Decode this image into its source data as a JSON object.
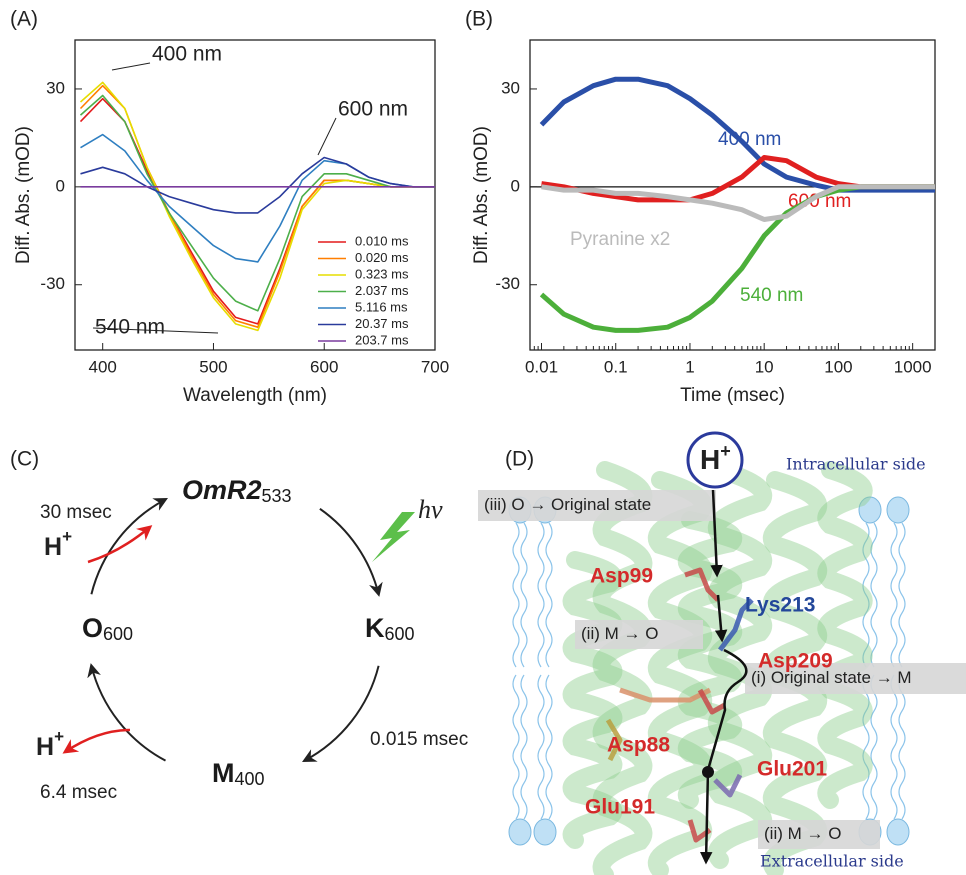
{
  "chart_data": [
    {
      "type": "line",
      "panel": "(A)",
      "x_label": "Wavelength (nm)",
      "y_label": "Diff. Abs. (mOD)",
      "x": [
        380,
        400,
        420,
        440,
        460,
        480,
        500,
        520,
        540,
        560,
        580,
        600,
        620,
        640,
        660,
        680,
        700
      ],
      "xlim": [
        375,
        700
      ],
      "xticks": [
        400,
        500,
        600,
        700
      ],
      "ylim": [
        -50,
        45
      ],
      "yticks": [
        -30,
        0,
        30
      ],
      "legend": "lower right",
      "annotations": [
        "400 nm",
        "600 nm",
        "540 nm"
      ],
      "series": [
        {
          "name": "0.010 ms",
          "color": "#e41a1c",
          "values": [
            20,
            27,
            20,
            5,
            -8,
            -20,
            -32,
            -40,
            -42,
            -25,
            -6,
            2,
            2,
            1,
            0,
            0,
            0
          ]
        },
        {
          "name": "0.020 ms",
          "color": "#ff7f00",
          "values": [
            24,
            31,
            24,
            6,
            -8,
            -21,
            -33,
            -41,
            -43,
            -26,
            -6,
            2,
            2,
            1,
            0,
            0,
            0
          ]
        },
        {
          "name": "0.323 ms",
          "color": "#e6dd00",
          "values": [
            26,
            32,
            24,
            6,
            -9,
            -22,
            -34,
            -42,
            -44,
            -28,
            -7,
            1,
            2,
            1,
            0,
            0,
            0
          ]
        },
        {
          "name": "2.037 ms",
          "color": "#4daf4a",
          "values": [
            22,
            28,
            20,
            4,
            -8,
            -18,
            -28,
            -35,
            -38,
            -22,
            -3,
            4,
            4,
            2,
            0,
            0,
            0
          ]
        },
        {
          "name": "5.116 ms",
          "color": "#2f7fc1",
          "values": [
            12,
            16,
            11,
            2,
            -6,
            -12,
            -18,
            -22,
            -23,
            -12,
            2,
            8,
            7,
            3,
            1,
            0,
            0
          ]
        },
        {
          "name": "20.37 ms",
          "color": "#2a3b9c",
          "values": [
            4,
            6,
            4,
            0,
            -3,
            -5,
            -7,
            -8,
            -8,
            -3,
            4,
            9,
            7,
            3,
            1,
            0,
            0
          ]
        },
        {
          "name": "203.7 ms",
          "color": "#7a3c9e",
          "values": [
            0,
            0,
            0,
            0,
            0,
            0,
            0,
            0,
            0,
            0,
            0,
            0,
            0,
            0,
            0,
            0,
            0
          ]
        }
      ]
    },
    {
      "type": "line",
      "panel": "(B)",
      "x_label": "Time (msec)",
      "y_label": "Diff. Abs. (mOD)",
      "log_x": true,
      "x": [
        0.01,
        0.02,
        0.05,
        0.1,
        0.2,
        0.5,
        1,
        2,
        5,
        10,
        20,
        50,
        100,
        200,
        500,
        1000,
        2000
      ],
      "xlim": [
        0.007,
        2000
      ],
      "xticks": [
        0.01,
        0.1,
        1,
        10,
        100,
        1000
      ],
      "ylim": [
        -50,
        45
      ],
      "yticks": [
        -30,
        0,
        30
      ],
      "series": [
        {
          "name": "400 nm",
          "color": "#2a4fa8",
          "values": [
            19,
            26,
            31,
            33,
            33,
            31,
            27,
            22,
            14,
            7,
            3,
            0.5,
            -1,
            -1,
            -1,
            -1,
            -1
          ]
        },
        {
          "name": "600 nm",
          "color": "#e02020",
          "values": [
            1,
            0,
            -2,
            -3,
            -4,
            -4,
            -4,
            -2,
            3,
            9,
            8,
            3,
            1,
            0,
            0,
            0,
            0
          ]
        },
        {
          "name": "540 nm",
          "color": "#4caf3a",
          "values": [
            -33,
            -39,
            -43,
            -44,
            -44,
            -43,
            -40,
            -35,
            -25,
            -15,
            -8,
            -3,
            -1,
            0,
            0,
            0,
            0
          ]
        },
        {
          "name": "Pyranine x2",
          "color": "#bbbbbb",
          "values": [
            0,
            -1,
            -1,
            -2,
            -2,
            -3,
            -4,
            -5,
            -7,
            -10,
            -9,
            -3,
            0,
            0,
            0,
            0,
            0
          ]
        }
      ]
    }
  ],
  "cycle": {
    "panel": "(C)",
    "states": [
      {
        "label": "OmR2",
        "sub": "533"
      },
      {
        "label": "K",
        "sub": "600"
      },
      {
        "label": "M",
        "sub": "400"
      },
      {
        "label": "O",
        "sub": "600"
      }
    ],
    "light": "hν",
    "times": [
      "30 msec",
      "0.015 msec",
      "6.4 msec"
    ],
    "proton": {
      "symbol": "H",
      "charge": "+"
    }
  },
  "structure": {
    "panel": "(D)",
    "proton": {
      "symbol": "H",
      "charge": "+"
    },
    "sides": [
      "Intracellular side",
      "Extracellular side"
    ],
    "steps": [
      "(iii) O → Original state",
      "(ii) M → O",
      "(i) Original state → M",
      "(ii) M → O"
    ],
    "residues": [
      "Asp99",
      "Lys213",
      "Asp209",
      "Asp88",
      "Glu201",
      "Glu191"
    ]
  }
}
